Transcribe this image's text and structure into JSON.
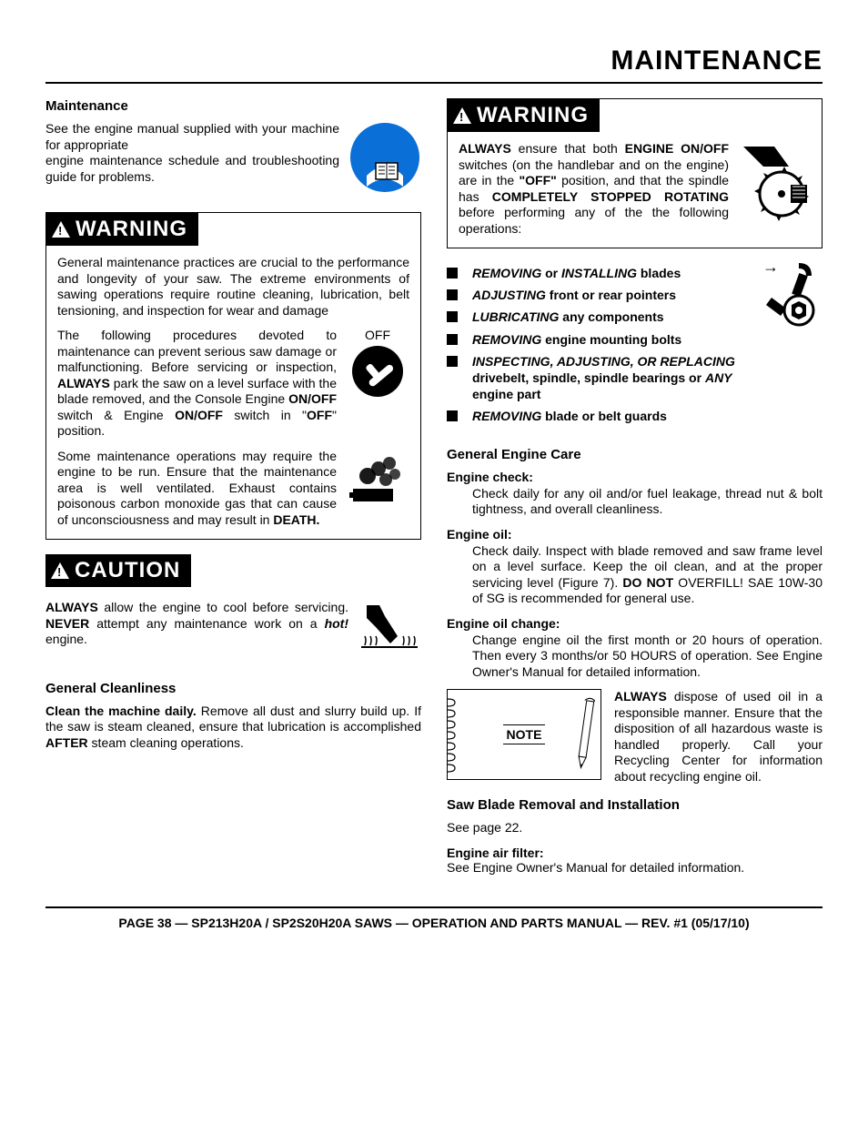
{
  "page": {
    "title": "MAINTENANCE",
    "footer": "PAGE 38 — SP213H20A / SP2S20H20A SAWS — OPERATION AND PARTS  MANUAL — REV. #1 (05/17/10)"
  },
  "colors": {
    "accent_blue": "#0a6fd6",
    "text": "#000000",
    "bg": "#ffffff"
  },
  "labels": {
    "warning": "WARNING",
    "caution": "CAUTION",
    "note": "NOTE",
    "off": "OFF"
  },
  "left": {
    "subhead": "Maintenance",
    "intro_1": "See the engine manual supplied with your machine for appropriate",
    "intro_2": "engine maintenance schedule and troubleshooting guide for problems.",
    "warn1_p1": "General maintenance practices are crucial to the performance and longevity of your saw. The extreme environments of sawing operations require routine cleaning, lubrication, belt tensioning, and inspection for wear and damage",
    "warn1_p2_a": "The following procedures devoted to maintenance can prevent serious saw damage or malfunctioning. Before servicing or inspection, ",
    "warn1_p2_b": "ALWAYS",
    "warn1_p2_c": " park the saw on a level surface with the blade removed, and the Console Engine ",
    "warn1_p2_d": "ON/OFF",
    "warn1_p2_e": " switch & Engine ",
    "warn1_p2_f": "ON/OFF",
    "warn1_p2_g": " switch in \"",
    "warn1_p2_h": "OFF",
    "warn1_p2_i": "\" position.",
    "warn1_p3_a": "Some maintenance operations may require the engine to be run. Ensure that the maintenance area is well ventilated. Exhaust contains poisonous carbon monoxide gas that can cause of unconsciousness and may result in ",
    "warn1_p3_b": "DEATH.",
    "caution_a": "ALWAYS",
    "caution_b": " allow the engine to cool before servicing. ",
    "caution_c": "NEVER",
    "caution_d": " attempt any maintenance work on a ",
    "caution_e": "hot!",
    "caution_f": " engine.",
    "clean_head": "General Cleanliness",
    "clean_a": "Clean the machine daily.",
    "clean_b": " Remove all dust and slurry build up. If the saw is steam cleaned, ensure that lubrication is accomplished ",
    "clean_c": "AFTER",
    "clean_d": " steam cleaning operations."
  },
  "right": {
    "warn2_a": "ALWAYS",
    "warn2_b": " ensure that both ",
    "warn2_c": "ENGINE ON/OFF",
    "warn2_d": " switches (on the handlebar and on the engine) are in the ",
    "warn2_e": "\"OFF\"",
    "warn2_f": " position,  and that the spindle has ",
    "warn2_g": "COMPLETELY STOPPED ROTATING",
    "warn2_h": " before performing any of the the following operations:",
    "bullets": [
      {
        "bi1": "REMOVING",
        "mid": " or ",
        "bi2": "INSTALLING",
        "rest": " blades"
      },
      {
        "bi1": "ADJUSTING",
        "rest": " front or rear pointers"
      },
      {
        "bi1": "LUBRICATING",
        "rest": " any components"
      },
      {
        "bi1": "REMOVING",
        "rest": " engine mounting bolts"
      },
      {
        "bi1": "INSPECTING, ADJUSTING, OR REPLACING ",
        "rest": " drivebelt, spindle, spindle bearings or ",
        "bi2": "ANY",
        "rest2": " engine part"
      },
      {
        "bi1": "REMOVING",
        "rest": " blade or belt guards"
      }
    ],
    "gec_head": "General Engine Care",
    "ec_head": "Engine check",
    "ec_body": "Check daily for any oil and/or fuel leakage, thread nut & bolt tightness, and overall cleanliness.",
    "eo_head": "Engine oil",
    "eo_body_a": "Check daily. Inspect with blade removed and saw frame level on a level surface. Keep the oil clean, and at the proper servicing level (Figure 7). ",
    "eo_body_b": "DO NOT",
    "eo_body_c": " OVERFILL! SAE 10W-30 of SG is recommended for general use.",
    "eoc_head": "Engine oil change",
    "eoc_body": "Change engine oil the first month or 20 hours of operation. Then every 3 months/or 50 HOURS of operation. See Engine Owner's Manual for detailed information.",
    "note_a": "ALWAYS",
    "note_b": " dispose of used oil in a responsible manner. Ensure that the disposition of all hazardous waste is handled properly. Call your Recycling Center for information about recycling engine oil.",
    "sbr_head": "Saw Blade Removal and Installation",
    "sbr_body": "See page 22.",
    "eaf_head": "Engine air filter",
    "eaf_body": "See Engine Owner's Manual for detailed information."
  }
}
